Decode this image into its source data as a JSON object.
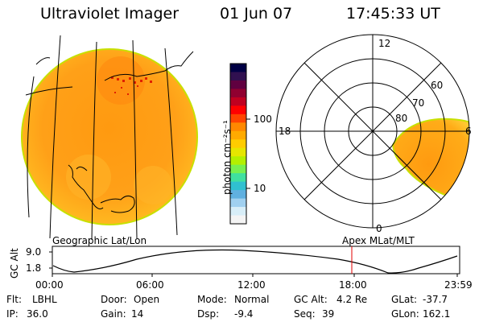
{
  "header": {
    "instrument": "Ultraviolet Imager",
    "date": "01 Jun 07",
    "time": "17:45:33 UT"
  },
  "colorbar": {
    "ticks": [
      "100",
      "10"
    ],
    "unit_label": "photon cm⁻²s⁻¹",
    "colors": [
      "#000044",
      "#301050",
      "#600040",
      "#900030",
      "#c00020",
      "#ff0000",
      "#ff4400",
      "#ff8800",
      "#ffaa00",
      "#ffcc00",
      "#e6e600",
      "#b4f000",
      "#78f050",
      "#40e0a0",
      "#30c0d0",
      "#60b0e0",
      "#a0d0f0",
      "#d8eef8",
      "#f4f4f4"
    ]
  },
  "geo_panel": {
    "label": "Geographic Lat/Lon"
  },
  "apex_panel": {
    "label": "Apex MLat/MLT",
    "mlt_labels": [
      "12",
      "18",
      "6",
      "0"
    ],
    "lat_labels": [
      "60",
      "70",
      "80"
    ]
  },
  "altitude_plot": {
    "ylabel": "GC Alt",
    "yticks": [
      "9.0",
      "1.8"
    ],
    "xticks": [
      "00:00",
      "06:00",
      "12:00",
      "18:00",
      "23:59"
    ]
  },
  "status": {
    "row1": [
      {
        "key": "Flt:",
        "value": "LBHL"
      },
      {
        "key": "Door:",
        "value": "Open"
      },
      {
        "key": "Mode:",
        "value": "Normal"
      },
      {
        "key": "GC Alt:",
        "value": "4.2 Re"
      },
      {
        "key": "GLat:",
        "value": "-37.7"
      }
    ],
    "row2": [
      {
        "key": "IP:",
        "value": "36.0"
      },
      {
        "key": "Gain:",
        "value": "14"
      },
      {
        "key": "Dsp:",
        "value": "-9.4"
      },
      {
        "key": "Seq:",
        "value": "39"
      },
      {
        "key": "GLon:",
        "value": "162.1"
      }
    ]
  }
}
